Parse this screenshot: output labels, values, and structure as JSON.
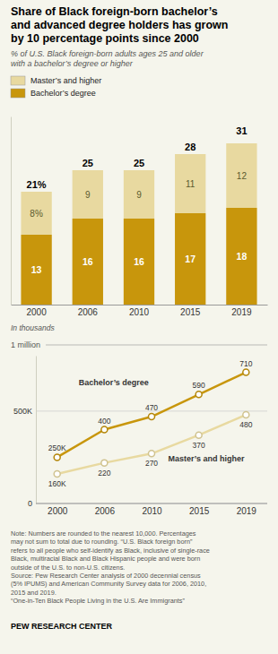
{
  "chart_data": [
    {
      "type": "bar",
      "title": "Share of Black foreign-born bachelor’s\nand advanced degree holders has grown\nby 10 percentage points since 2000",
      "subtitle": "% of U.S. Black foreign-born adults ages 25 and older\nwith a bachelor’s degree or higher",
      "categories": [
        "2000",
        "2006",
        "2010",
        "2015",
        "2019"
      ],
      "series": [
        {
          "name": "Bachelor’s degree",
          "color": "#C8960C",
          "values": [
            13,
            16,
            16,
            17,
            18
          ]
        },
        {
          "name": "Master’s and higher",
          "color": "#E8D9A0",
          "values": [
            8,
            9,
            9,
            11,
            12
          ],
          "value_labels": [
            "8%",
            "9",
            "9",
            "11",
            "12"
          ]
        }
      ],
      "totals": [
        21,
        25,
        25,
        28,
        31
      ],
      "total_labels": [
        "21%",
        "25",
        "25",
        "28",
        "31"
      ],
      "ylim": [
        0,
        35
      ],
      "stacked": true,
      "data_labels": true,
      "tick_labels": "x",
      "legend": "top-left"
    },
    {
      "type": "line",
      "categories": [
        "2000",
        "2006",
        "2010",
        "2015",
        "2019"
      ],
      "series": [
        {
          "name": "Bachelor’s degree",
          "color": "#C8960C",
          "marker": "circle",
          "values": [
            250000,
            400000,
            470000,
            590000,
            710000
          ],
          "value_labels": [
            "250K",
            "400",
            "470",
            "590",
            "710"
          ]
        },
        {
          "name": "Master’s and higher",
          "color": "#E8D9A0",
          "marker": "circle",
          "values": [
            160000,
            220000,
            270000,
            370000,
            480000
          ],
          "value_labels": [
            "160K",
            "220",
            "270",
            "370",
            "480"
          ]
        }
      ],
      "ylim": [
        0,
        800000
      ],
      "yticks": [
        0,
        {
          "value": 500000,
          "label": "500K"
        }
      ],
      "grid": true,
      "data_labels": true,
      "annotations": [
        "In thousands",
        "1 million"
      ],
      "note": "Note: Numbers are rounded to the nearest 10,000. Percentages\nmay not sum to total due to rounding. “U.S. Black foreign born”\nrefers to all people who self-identify as Black, inclusive of single-race\nBlack, multiracial Black and Black Hispanic people and were born\noutside of the U.S. to non-U.S. citizens.\nSource: Pew Research Center analysis of 2000 decennial census\n(5% IPUMS) and American Community Survey data for 2006, 2010,\n2015 and 2019.\n“One-in-Ten Black People Living in the U.S. Are Immigrants”",
      "credit": "PEW RESEARCH CENTER"
    }
  ]
}
